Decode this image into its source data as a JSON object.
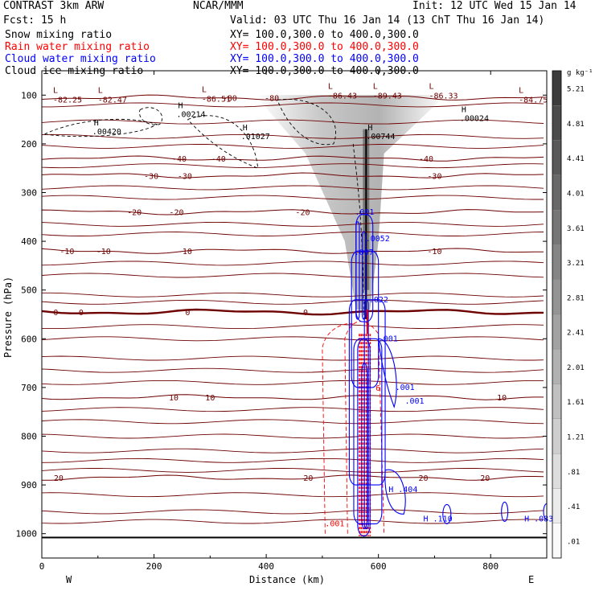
{
  "header": {
    "title": "CONTRAST  3km ARW",
    "org": "NCAR/MMM",
    "init": "Init: 12 UTC Wed 15 Jan 14",
    "fcst": "Fcst:   15 h",
    "valid": "Valid: 03 UTC Thu 16 Jan 14 (13 ChT Thu 16 Jan 14)",
    "fields": [
      {
        "name": "Snow mixing ratio",
        "xy": "XY= 100.0,300.0 to 400.0,300.0",
        "color": "#000000"
      },
      {
        "name": "Rain water mixing ratio",
        "xy": "XY= 100.0,300.0 to 400.0,300.0",
        "color": "#ff0000"
      },
      {
        "name": "Cloud water mixing ratio",
        "xy": "XY= 100.0,300.0 to 400.0,300.0",
        "color": "#0000ff"
      },
      {
        "name": "Cloud ice mixing ratio",
        "xy": "XY= 100.0,300.0 to 400.0,300.0",
        "color": "#000000"
      }
    ]
  },
  "chart_data": {
    "type": "cross-section",
    "xlabel": "Distance (km)",
    "ylabel": "Pressure (hPa)",
    "xlim": [
      0,
      900
    ],
    "ylim": [
      1050,
      50
    ],
    "xticks": [
      "0",
      "200",
      "400",
      "600",
      "800"
    ],
    "xtick_values": [
      0,
      200,
      400,
      600,
      800
    ],
    "yticks": [
      "100",
      "200",
      "300",
      "400",
      "500",
      "600",
      "700",
      "800",
      "900",
      "1000"
    ],
    "ytick_values": [
      100,
      200,
      300,
      400,
      500,
      600,
      700,
      800,
      900,
      1000
    ],
    "endpoints": {
      "left": "W",
      "right": "E"
    },
    "colorbar": {
      "unit": "g kg⁻¹",
      "labels": [
        "5.21",
        "4.81",
        "4.41",
        "4.01",
        "3.61",
        "3.21",
        "2.81",
        "2.41",
        "2.01",
        "1.61",
        "1.21",
        ".81",
        ".41",
        ".01"
      ]
    },
    "temperature_isotherms": [
      {
        "label": "-80",
        "pressure": 105,
        "label_x": [
          335,
          410
        ]
      },
      {
        "label": "-40",
        "pressure": 230,
        "label_x": [
          245,
          315,
          685
        ]
      },
      {
        "label": "-30",
        "pressure": 265,
        "label_x": [
          195,
          255,
          700
        ]
      },
      {
        "label": "-20",
        "pressure": 340,
        "label_x": [
          165,
          240,
          465
        ]
      },
      {
        "label": "-10",
        "pressure": 420,
        "label_x": [
          45,
          110,
          255,
          700
        ]
      },
      {
        "label": "0",
        "pressure": 545,
        "label_x": [
          25,
          70,
          260,
          470
        ]
      },
      {
        "label": "10",
        "pressure": 720,
        "label_x": [
          235,
          300,
          820
        ]
      },
      {
        "label": "20",
        "pressure": 885,
        "label_x": [
          30,
          475,
          680,
          790
        ]
      }
    ],
    "temperature_annotations": [
      {
        "type": "L",
        "value": "-82.25",
        "x": 20,
        "p": 112
      },
      {
        "type": "L",
        "value": "-82.47",
        "x": 100,
        "p": 112
      },
      {
        "type": "L",
        "value": "-86.51",
        "x": 285,
        "p": 110
      },
      {
        "type": "L",
        "value": "-86.43",
        "x": 510,
        "p": 104
      },
      {
        "type": "L",
        "value": "-89.43",
        "x": 590,
        "p": 104
      },
      {
        "type": "L",
        "value": "-86.33",
        "x": 690,
        "p": 104
      },
      {
        "type": "L",
        "value": "-84.75",
        "x": 850,
        "p": 112
      }
    ],
    "ice_annotations": [
      {
        "type": "H",
        "value": ".00420",
        "x": 90,
        "p": 175
      },
      {
        "type": "H",
        "value": ".00214",
        "x": 240,
        "p": 140
      },
      {
        "type": "H",
        "value": ".01027",
        "x": 355,
        "p": 185
      },
      {
        "type": "H",
        "value": ".00744",
        "x": 578,
        "p": 185
      },
      {
        "type": "H",
        "value": ".00024",
        "x": 745,
        "p": 148
      }
    ],
    "cloud_water_annotations": [
      {
        "value": ".001",
        "x": 558,
        "p": 345
      },
      {
        "value": ".0052",
        "x": 577,
        "p": 400
      },
      {
        "value": ".007",
        "x": 557,
        "p": 428
      },
      {
        "value": ".022",
        "x": 583,
        "p": 525
      },
      {
        "value": ".001",
        "x": 600,
        "p": 605
      },
      {
        "value": ".001",
        "x": 630,
        "p": 705
      },
      {
        "value": ".001",
        "x": 647,
        "p": 733
      },
      {
        "value": "H .404",
        "x": 618,
        "p": 915
      },
      {
        "value": "H .110",
        "x": 680,
        "p": 975
      },
      {
        "value": "H .083",
        "x": 860,
        "p": 975
      }
    ],
    "rain_annotations": [
      {
        "value": ".001",
        "x": 505,
        "p": 985
      },
      {
        "value": "6",
        "x": 595,
        "p": 707
      }
    ]
  }
}
